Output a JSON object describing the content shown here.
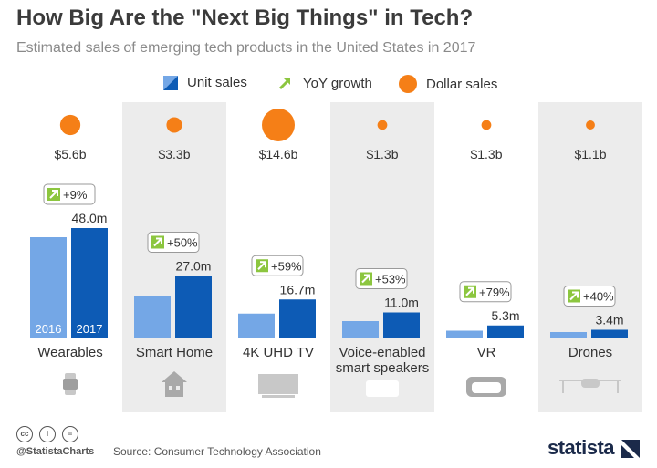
{
  "header": {
    "title": "How Big Are the \"Next Big Things\" in Tech?",
    "subtitle": "Estimated sales of emerging tech products in the United States in 2017"
  },
  "legend": {
    "unit_sales": "Unit sales",
    "yoy_growth": "YoY growth",
    "dollar_sales": "Dollar sales"
  },
  "colors": {
    "bar_2016": "#74a7e6",
    "bar_2017": "#0d5bb5",
    "dollar": "#f57f17",
    "growth_arrow": "#8cc63f",
    "panel": "#ececec",
    "icon": "#c8c8c8"
  },
  "chart_data": {
    "type": "bar",
    "categories": [
      "Wearables",
      "Smart Home",
      "4K UHD TV",
      "Voice-enabled smart speakers",
      "VR",
      "Drones"
    ],
    "category_lines": [
      [
        "Wearables"
      ],
      [
        "Smart Home"
      ],
      [
        "4K UHD TV"
      ],
      [
        "Voice-enabled",
        "smart speakers"
      ],
      [
        "VR"
      ],
      [
        "Drones"
      ]
    ],
    "series": [
      {
        "name": "2016",
        "values": [
          44.0,
          18.0,
          10.5,
          7.2,
          3.0,
          2.4
        ]
      },
      {
        "name": "2017",
        "values": [
          48.0,
          27.0,
          16.7,
          11.0,
          5.3,
          3.4
        ]
      }
    ],
    "unit_labels_2017": [
      "48.0m",
      "27.0m",
      "16.7m",
      "11.0m",
      "5.3m",
      "3.4m"
    ],
    "yoy_growth": [
      "+9%",
      "+50%",
      "+59%",
      "+53%",
      "+79%",
      "+40%"
    ],
    "dollar_sales_billion": [
      5.6,
      3.3,
      14.6,
      1.3,
      1.3,
      1.1
    ],
    "dollar_labels": [
      "$5.6b",
      "$3.3b",
      "$14.6b",
      "$1.3b",
      "$1.3b",
      "$1.1b"
    ],
    "year_labels": [
      "2016",
      "2017"
    ],
    "icons": [
      "smartwatch-icon",
      "house-icon",
      "tv-icon",
      "speaker-icon",
      "vr-headset-icon",
      "drone-icon"
    ],
    "ylim": [
      0,
      50
    ],
    "legend_position": "top-center"
  },
  "footer": {
    "handle": "@StatistaCharts",
    "source": "Source: Consumer Technology Association",
    "logo": "statista",
    "license_icons": [
      "cc",
      "i",
      "="
    ]
  }
}
